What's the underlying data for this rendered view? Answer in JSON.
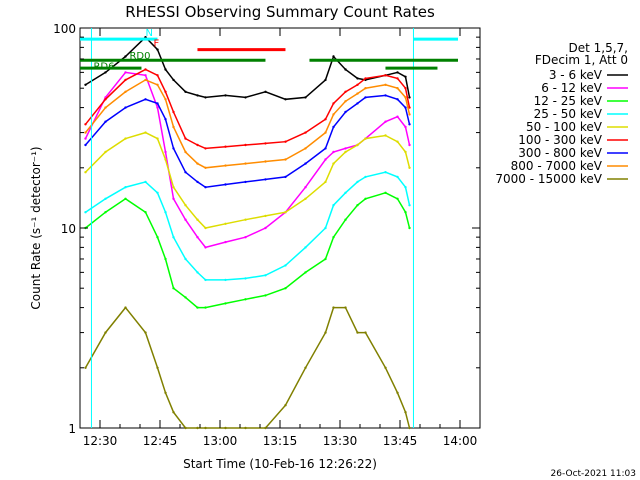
{
  "chart_data": {
    "type": "line",
    "title": "RHESSI Observing Summary Count Rates",
    "xlabel": "Start Time (10-Feb-16 12:26:22)",
    "ylabel": "Count Rate (s⁻¹ detector⁻¹)",
    "y_scale": "log",
    "ylim": [
      1,
      100
    ],
    "xlim": [
      "12:25",
      "14:05"
    ],
    "x_ticks": [
      "12:30",
      "12:45",
      "13:00",
      "13:15",
      "13:30",
      "13:45",
      "14:00"
    ],
    "y_ticks": [
      "1",
      "10",
      "100"
    ],
    "grid": false,
    "legend_header": [
      "Det 1,5,7,",
      "FDecim 1, Att 0"
    ],
    "legend_placement": "right",
    "footer": "26-Oct-2021 11:03",
    "x_minutes": [
      0,
      5,
      10,
      15,
      18,
      20,
      22,
      25,
      28,
      30,
      35,
      40,
      45,
      50,
      55,
      60,
      62,
      65,
      68,
      70,
      75,
      78,
      80,
      81
    ],
    "series": [
      {
        "name": "3 - 6 keV",
        "color": "#000000",
        "values": [
          52,
          60,
          72,
          90,
          78,
          62,
          55,
          48,
          46,
          45,
          46,
          45,
          48,
          44,
          45,
          55,
          72,
          62,
          56,
          55,
          58,
          60,
          57,
          45
        ]
      },
      {
        "name": "6 - 12 keV",
        "color": "#ff00ff",
        "values": [
          28,
          45,
          60,
          58,
          40,
          24,
          14,
          11,
          9,
          8,
          8.5,
          9,
          10,
          12,
          16,
          22,
          24,
          25,
          26,
          28,
          34,
          36,
          32,
          26
        ]
      },
      {
        "name": "12 - 25 keV",
        "color": "#00ff00",
        "values": [
          10,
          12,
          14,
          12,
          9,
          7,
          5,
          4.5,
          4,
          4,
          4.2,
          4.4,
          4.6,
          5,
          6,
          7,
          9,
          11,
          13,
          14,
          15,
          14,
          12,
          10
        ]
      },
      {
        "name": "25 - 50 keV",
        "color": "#00ffff",
        "values": [
          12,
          14,
          16,
          17,
          15,
          12,
          9,
          7,
          6,
          5.5,
          5.5,
          5.6,
          5.8,
          6.5,
          8,
          10,
          13,
          15,
          17,
          18,
          19,
          18,
          16,
          13
        ]
      },
      {
        "name": "50 - 100 keV",
        "color": "#dddd00",
        "values": [
          19,
          24,
          28,
          30,
          28,
          22,
          16,
          13,
          11,
          10,
          10.5,
          11,
          11.5,
          12,
          14,
          17,
          21,
          24,
          26,
          28,
          29,
          27,
          24,
          20
        ]
      },
      {
        "name": "100 - 300 keV",
        "color": "#ff0000",
        "values": [
          33,
          44,
          55,
          62,
          58,
          48,
          38,
          28,
          26,
          25,
          25.5,
          26,
          26.5,
          27,
          30,
          35,
          42,
          48,
          52,
          56,
          58,
          56,
          50,
          40
        ]
      },
      {
        "name": "300 - 800 keV",
        "color": "#0000ff",
        "values": [
          26,
          34,
          40,
          44,
          42,
          35,
          25,
          19,
          17,
          16,
          16.5,
          17,
          17.5,
          18,
          21,
          25,
          32,
          38,
          42,
          45,
          46,
          44,
          40,
          33
        ]
      },
      {
        "name": "800 - 7000 keV",
        "color": "#ff8c00",
        "values": [
          30,
          40,
          48,
          55,
          52,
          44,
          32,
          24,
          21,
          20,
          20.5,
          21,
          21.5,
          22,
          25,
          30,
          37,
          43,
          47,
          50,
          52,
          50,
          45,
          37
        ]
      },
      {
        "name": "7000 - 15000 keV",
        "color": "#808000",
        "values": [
          2,
          3,
          4,
          3,
          2,
          1.5,
          1.2,
          1,
          1,
          1,
          1,
          1,
          1,
          1.3,
          2,
          3,
          4,
          4,
          3,
          3,
          2,
          1.5,
          1.2,
          1
        ]
      }
    ],
    "annotations": [
      {
        "label": "N",
        "color": "#00ffff"
      },
      {
        "label": "F",
        "color": "#ff0000"
      },
      {
        "label": "RD0",
        "color": "#008000"
      },
      {
        "label": "RD6",
        "color": "#008000"
      }
    ]
  }
}
